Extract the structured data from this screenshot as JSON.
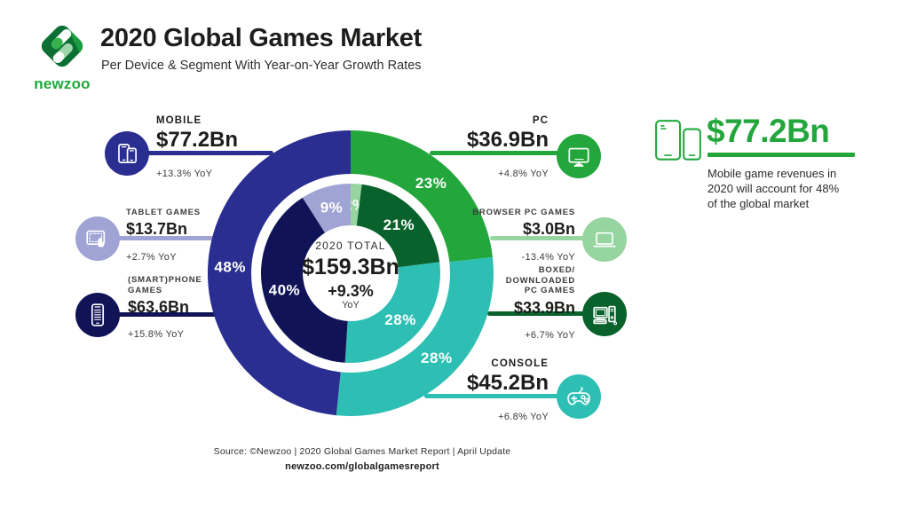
{
  "header": {
    "logo_text": "newzoo",
    "logo_color": "#1ea83c",
    "title": "2020 Global Games Market",
    "subtitle": "Per Device & Segment With Year-on-Year Growth Rates"
  },
  "chart_data": {
    "type": "pie",
    "subtype": "double-ring-donut",
    "title": "2020 Global Games Market Per Device & Segment",
    "direction": "clockwise",
    "start_angle_deg": 0,
    "center": {
      "label": "2020 TOTAL",
      "value": "$159.3Bn",
      "growth": "+9.3%",
      "growth_unit": "YoY"
    },
    "outer_ring": [
      {
        "name": "PC",
        "label": "23%",
        "percent": 23.2,
        "value": "$36.9Bn",
        "yoy": "+4.8% YoY",
        "color": "#23a73c"
      },
      {
        "name": "Console",
        "label": "28%",
        "percent": 28.4,
        "value": "$45.2Bn",
        "yoy": "+6.8% YoY",
        "color": "#2ebfb4"
      },
      {
        "name": "Mobile",
        "label": "48%",
        "percent": 48.4,
        "value": "$77.2Bn",
        "yoy": "+13.3% YoY",
        "color": "#2b2e91"
      }
    ],
    "inner_ring": [
      {
        "name": "Browser PC Games",
        "label": "2%",
        "percent": 2,
        "value": "$3.0Bn",
        "yoy": "-13.4% YoY",
        "color": "#96d4a0"
      },
      {
        "name": "Boxed/Downloaded PC Games",
        "label": "21%",
        "percent": 21,
        "value": "$33.9Bn",
        "yoy": "+6.7% YoY",
        "color": "#09622c"
      },
      {
        "name": "Console",
        "label": "28%",
        "percent": 28,
        "value": "$45.2Bn",
        "yoy": "+6.8% YoY",
        "color": "#2ebfb4"
      },
      {
        "name": "(Smart)phone Games",
        "label": "40%",
        "percent": 40,
        "value": "$63.6Bn",
        "yoy": "+15.8% YoY",
        "color": "#101456"
      },
      {
        "name": "Tablet Games",
        "label": "9%",
        "percent": 9,
        "value": "$13.7Bn",
        "yoy": "+2.7% YoY",
        "color": "#a0a4d4"
      }
    ]
  },
  "callouts": {
    "mobile": {
      "label": "MOBILE",
      "value": "$77.2Bn",
      "yoy": "+13.3% YoY",
      "color": "#2b2e91"
    },
    "tablet": {
      "label": "TABLET GAMES",
      "value": "$13.7Bn",
      "yoy": "+2.7% YoY",
      "color": "#a0a4d4"
    },
    "smartphone": {
      "label": "(SMART)PHONE\nGAMES",
      "value": "$63.6Bn",
      "yoy": "+15.8% YoY",
      "color": "#101456"
    },
    "pc": {
      "label": "PC",
      "value": "$36.9Bn",
      "yoy": "+4.8% YoY",
      "color": "#23a73c"
    },
    "browser": {
      "label": "BROWSER PC GAMES",
      "value": "$3.0Bn",
      "yoy": "-13.4% YoY",
      "color": "#96d4a0"
    },
    "boxed": {
      "label": "BOXED/\nDOWNLOADED\nPC GAMES",
      "value": "$33.9Bn",
      "yoy": "+6.7% YoY",
      "color": "#09622c"
    },
    "console": {
      "label": "CONSOLE",
      "value": "$45.2Bn",
      "yoy": "+6.8% YoY",
      "color": "#2ebfb4"
    }
  },
  "highlight": {
    "value": "$77.2Bn",
    "color": "#23a73c",
    "description": "Mobile game revenues in\n2020 will account for 48%\nof the global market"
  },
  "footer": {
    "source": "Source: ©Newzoo | 2020 Global Games Market Report | April Update",
    "url": "newzoo.com/globalgamesreport"
  }
}
